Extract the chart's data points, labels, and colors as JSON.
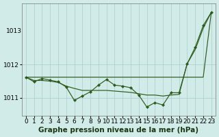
{
  "title": "Graphe pression niveau de la mer (hPa)",
  "background_color": "#d0ebe8",
  "line_color": "#2d5a1b",
  "grid_color": "#a8ccc8",
  "hours": [
    0,
    1,
    2,
    3,
    4,
    5,
    6,
    7,
    8,
    9,
    10,
    11,
    12,
    13,
    14,
    15,
    16,
    17,
    18,
    19,
    20,
    21,
    22,
    23
  ],
  "series_actual": [
    1011.62,
    1011.48,
    1011.58,
    1011.53,
    1011.48,
    1011.32,
    1010.92,
    1011.05,
    1011.18,
    1011.38,
    1011.55,
    1011.38,
    1011.35,
    1011.3,
    1011.08,
    1010.72,
    1010.85,
    1010.78,
    1011.15,
    1011.15,
    1012.02,
    1012.52,
    1013.18,
    1013.58
  ],
  "series_smooth": [
    1011.62,
    1011.52,
    1011.52,
    1011.5,
    1011.46,
    1011.35,
    1011.28,
    1011.22,
    1011.22,
    1011.22,
    1011.22,
    1011.2,
    1011.18,
    1011.16,
    1011.12,
    1011.08,
    1011.08,
    1011.05,
    1011.08,
    1011.1,
    1012.02,
    1012.45,
    1013.1,
    1013.58
  ],
  "series_trend": [
    1011.62,
    1011.62,
    1011.62,
    1011.62,
    1011.62,
    1011.62,
    1011.62,
    1011.62,
    1011.62,
    1011.62,
    1011.62,
    1011.62,
    1011.62,
    1011.62,
    1011.62,
    1011.62,
    1011.62,
    1011.62,
    1011.62,
    1011.62,
    1011.62,
    1011.62,
    1011.62,
    1013.58
  ],
  "ylim_bottom": 1010.45,
  "ylim_top": 1013.85,
  "yticks": [
    1011,
    1012
  ],
  "ytick_top_label": "1013",
  "xlim_left": -0.5,
  "xlim_right": 23.5,
  "tick_fontsize": 6.5,
  "title_fontsize": 7.5
}
